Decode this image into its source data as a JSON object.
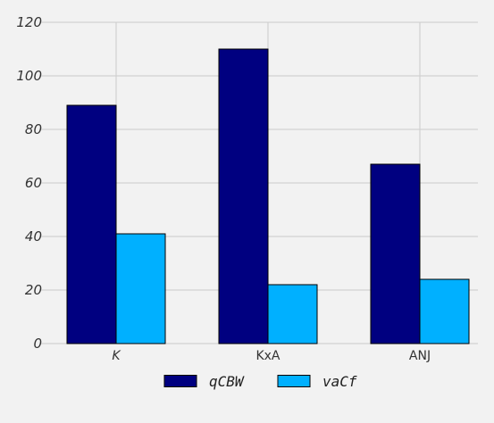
{
  "chart_data": {
    "type": "bar",
    "categories": [
      "K",
      "KxA",
      "ANJ"
    ],
    "category_italic": [
      true,
      false,
      false
    ],
    "series": [
      {
        "name": "qCBW",
        "values": [
          89,
          110,
          67
        ],
        "color": "#000080"
      },
      {
        "name": "vaCf",
        "values": [
          41,
          22,
          24
        ],
        "color": "#00b0ff"
      }
    ],
    "ylim": [
      0,
      120
    ],
    "yticks": [
      0,
      20,
      40,
      60,
      80,
      100,
      120
    ],
    "grid": true,
    "legend_position": "bottom-center",
    "background_color": "#f2f2f2",
    "grid_color": "#cbcbcb"
  }
}
